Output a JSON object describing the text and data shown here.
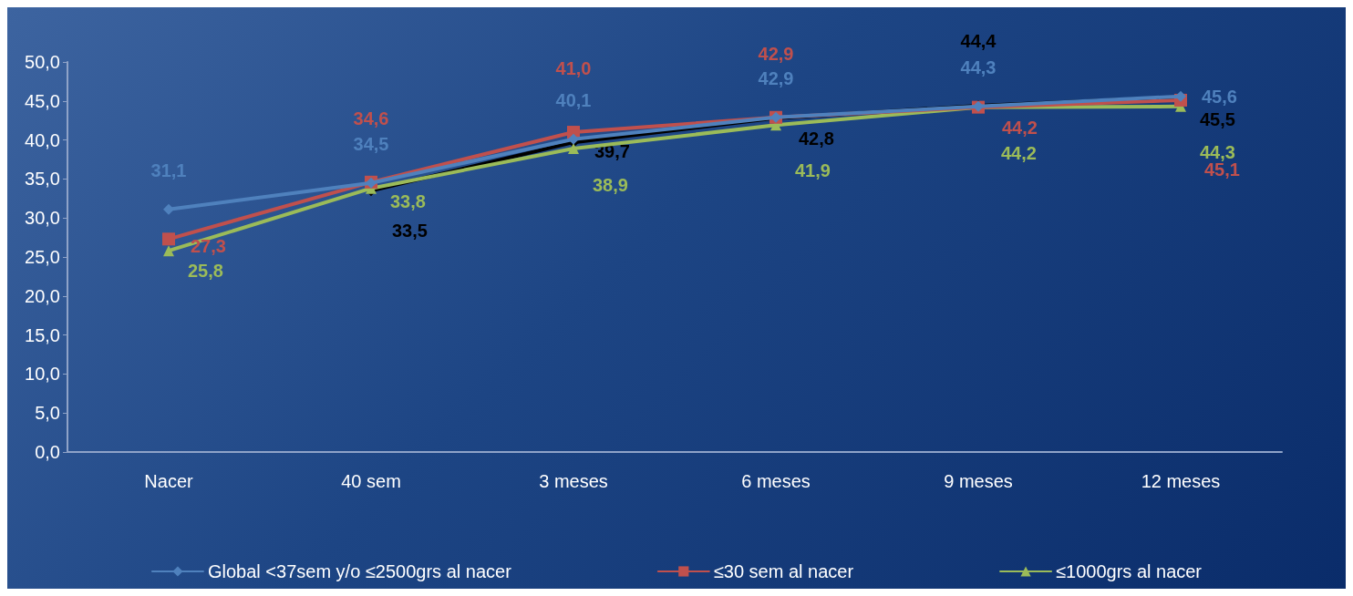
{
  "chart_data": {
    "type": "line",
    "categories": [
      "Nacer",
      "40 sem",
      "3 meses",
      "6 meses",
      "9 meses",
      "12 meses"
    ],
    "series": [
      {
        "name": "Global <37sem y/o ≤2500grs al nacer",
        "color": "#4f81bd",
        "marker": "diamond",
        "values": [
          31.1,
          34.5,
          40.1,
          42.9,
          44.3,
          45.6
        ],
        "value_labels": [
          "31,1",
          "34,5",
          "40,1",
          "42,9",
          "44,3",
          "45,6"
        ]
      },
      {
        "name": "≤30 sem al nacer",
        "color": "#c0504d",
        "marker": "square",
        "values": [
          27.3,
          34.6,
          41.0,
          42.9,
          44.2,
          45.1
        ],
        "value_labels": [
          "27,3",
          "34,6",
          "41,0",
          "42,9",
          "44,2",
          "45,1"
        ]
      },
      {
        "name": "≤1000grs al nacer",
        "color": "#9bbb59",
        "marker": "triangle",
        "values": [
          25.8,
          33.8,
          38.9,
          41.9,
          44.2,
          44.3
        ],
        "value_labels": [
          "25,8",
          "33,8",
          "38,9",
          "41,9",
          "44,2",
          "44,3"
        ]
      },
      {
        "color": "#000000",
        "marker": "diamond",
        "values": [
          null,
          33.5,
          39.7,
          42.8,
          44.4,
          45.5
        ],
        "value_labels": [
          null,
          "33,5",
          "39,7",
          "42,8",
          "44,4",
          "45,5"
        ]
      }
    ],
    "ylim": [
      0,
      50
    ],
    "yticks": [
      {
        "value": 0,
        "label": "0,0"
      },
      {
        "value": 5,
        "label": "5,0"
      },
      {
        "value": 10,
        "label": "10,0"
      },
      {
        "value": 15,
        "label": "15,0"
      },
      {
        "value": 20,
        "label": "20,0"
      },
      {
        "value": 25,
        "label": "25,0"
      },
      {
        "value": 30,
        "label": "30,0"
      },
      {
        "value": 35,
        "label": "35,0"
      },
      {
        "value": 40,
        "label": "40,0"
      },
      {
        "value": 45,
        "label": "45,0"
      },
      {
        "value": 50,
        "label": "50,0"
      }
    ],
    "grid": false,
    "legend": "bottom"
  }
}
